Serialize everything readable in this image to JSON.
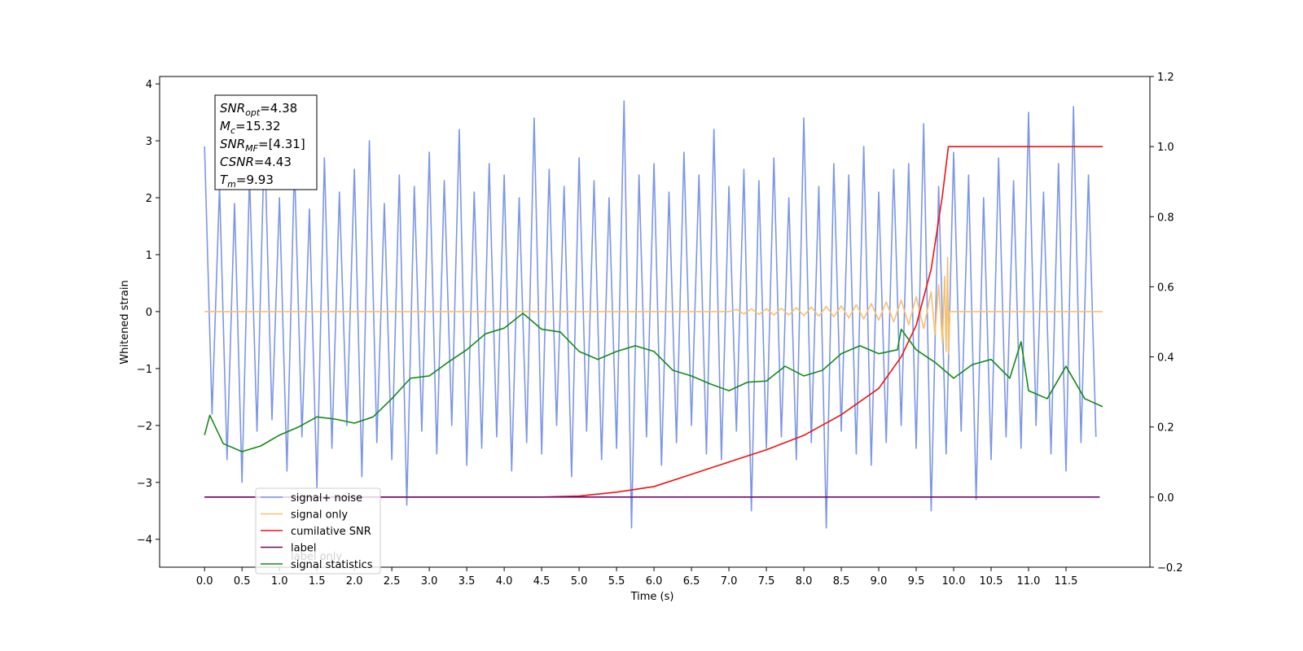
{
  "chart_data": {
    "type": "line",
    "xlabel": "Time (s)",
    "ylabel": "Whitened strain",
    "xlim": [
      -0.6,
      12.62
    ],
    "ylim": [
      -4.49,
      4.13
    ],
    "y2lim": [
      -0.2,
      1.2
    ],
    "xticks": [
      {
        "value": 0,
        "label": "0.0"
      },
      0.5,
      {
        "value": 1,
        "label": "1.0"
      },
      1.5,
      {
        "value": 2,
        "label": "2.0"
      },
      2.5,
      {
        "value": 3,
        "label": "3.0"
      },
      3.5,
      {
        "value": 4,
        "label": "4.0"
      },
      4.5,
      {
        "value": 5,
        "label": "5.0"
      },
      5.5,
      {
        "value": 6,
        "label": "6.0"
      },
      6.5,
      {
        "value": 7,
        "label": "7.0"
      },
      7.5,
      {
        "value": 8,
        "label": "8.0"
      },
      8.5,
      {
        "value": 9,
        "label": "9.0"
      },
      9.5,
      {
        "value": 10,
        "label": "10.0"
      },
      10.5,
      {
        "value": 11,
        "label": "11.0"
      },
      11.5
    ],
    "yticks": [
      {
        "value": -4,
        "label": "−4"
      },
      {
        "value": -3,
        "label": "−3"
      },
      {
        "value": -2,
        "label": "−2"
      },
      {
        "value": -1,
        "label": "−1"
      },
      0,
      1,
      2,
      3,
      4
    ],
    "y2ticks": [
      {
        "value": -0.2,
        "label": "−0.2"
      },
      {
        "value": 0,
        "label": "0.0"
      },
      0.2,
      0.4,
      0.6,
      0.8,
      {
        "value": 1,
        "label": "1.0"
      },
      1.2
    ],
    "legend": "lower left",
    "legend_overlay": [
      "label only"
    ],
    "annotation": [
      {
        "text": "SNR",
        "sub": "opt",
        "rest": "=4.38"
      },
      {
        "text": "M",
        "sub": "c",
        "rest": "=15.32"
      },
      {
        "text": "SNR",
        "sub": "MF",
        "rest": "=[4.31]"
      },
      {
        "text": "CSNR",
        "rest": "=4.43"
      },
      {
        "text": "T",
        "sub": "m",
        "rest": "=9.93"
      }
    ],
    "series": [
      {
        "name": "signal+ noise",
        "color": "#7b96e8",
        "axis": "y",
        "x": [
          0,
          0.1,
          0.2,
          0.3,
          0.4,
          0.5,
          0.6,
          0.7,
          0.8,
          0.9,
          1,
          1.1,
          1.2,
          1.3,
          1.4,
          1.5,
          1.6,
          1.7,
          1.8,
          1.9,
          2,
          2.1,
          2.2,
          2.3,
          2.4,
          2.5,
          2.6,
          2.7,
          2.8,
          2.9,
          3,
          3.1,
          3.2,
          3.3,
          3.4,
          3.5,
          3.6,
          3.7,
          3.8,
          3.9,
          4,
          4.1,
          4.2,
          4.3,
          4.4,
          4.5,
          4.6,
          4.7,
          4.8,
          4.9,
          5,
          5.1,
          5.2,
          5.3,
          5.4,
          5.5,
          5.6,
          5.7,
          5.8,
          5.9,
          6,
          6.1,
          6.2,
          6.3,
          6.4,
          6.5,
          6.6,
          6.7,
          6.8,
          6.9,
          7,
          7.1,
          7.2,
          7.3,
          7.4,
          7.5,
          7.6,
          7.7,
          7.8,
          7.9,
          8,
          8.1,
          8.2,
          8.3,
          8.4,
          8.5,
          8.6,
          8.7,
          8.8,
          8.9,
          9,
          9.1,
          9.2,
          9.3,
          9.4,
          9.5,
          9.6,
          9.7,
          9.8,
          9.9,
          10,
          10.1,
          10.2,
          10.3,
          10.4,
          10.5,
          10.6,
          10.7,
          10.8,
          10.9,
          11,
          11.1,
          11.2,
          11.3,
          11.4,
          11.5,
          11.6,
          11.7,
          11.8,
          11.9
        ],
        "values": [
          2.9,
          -1.8,
          2.2,
          -2.6,
          1.9,
          -3.0,
          2.4,
          -2.1,
          3.1,
          -1.9,
          2.0,
          -2.8,
          2.6,
          -2.2,
          1.8,
          -3.1,
          2.7,
          -2.4,
          2.1,
          -2.0,
          2.5,
          -2.9,
          3.0,
          -2.3,
          1.9,
          -2.6,
          2.4,
          -3.4,
          2.2,
          -2.1,
          2.8,
          -2.5,
          2.3,
          -2.0,
          3.2,
          -2.7,
          2.1,
          -2.4,
          2.6,
          -2.2,
          2.4,
          -2.8,
          2.0,
          -2.3,
          3.4,
          -2.5,
          2.5,
          -2.0,
          2.2,
          -2.9,
          2.7,
          -2.1,
          2.3,
          -2.6,
          2.0,
          -2.4,
          3.7,
          -3.8,
          2.4,
          -2.2,
          2.6,
          -2.7,
          2.1,
          -2.3,
          2.8,
          -2.0,
          2.4,
          -2.5,
          3.2,
          -2.6,
          2.2,
          -2.1,
          2.5,
          -3.5,
          2.3,
          -2.4,
          2.7,
          -2.2,
          2.0,
          -2.6,
          3.4,
          -2.3,
          2.2,
          -3.8,
          2.6,
          -2.1,
          2.4,
          -2.5,
          2.9,
          -2.7,
          2.1,
          -2.3,
          2.5,
          -2.0,
          2.6,
          -2.4,
          3.3,
          -3.5,
          2.2,
          -2.5,
          2.8,
          -2.1,
          2.4,
          -3.3,
          2.0,
          -2.6,
          2.7,
          -2.2,
          2.3,
          -2.4,
          3.5,
          -2.0,
          2.1,
          -2.5,
          2.6,
          -2.8,
          3.6,
          -2.3,
          2.4,
          -2.2
        ]
      },
      {
        "name": "signal only",
        "color": "#f7c070",
        "axis": "y",
        "x": [
          0,
          7.0,
          7.1,
          7.2,
          7.3,
          7.4,
          7.5,
          7.6,
          7.7,
          7.8,
          7.9,
          8.0,
          8.1,
          8.2,
          8.3,
          8.4,
          8.5,
          8.6,
          8.7,
          8.8,
          8.9,
          9.0,
          9.1,
          9.2,
          9.3,
          9.4,
          9.5,
          9.6,
          9.7,
          9.75,
          9.8,
          9.85,
          9.88,
          9.9,
          9.92,
          9.93,
          9.95,
          11.99
        ],
        "values": [
          0,
          0,
          0.04,
          -0.04,
          0.05,
          -0.05,
          0.05,
          -0.06,
          0.06,
          -0.06,
          0.07,
          -0.07,
          0.08,
          -0.08,
          0.09,
          -0.09,
          0.1,
          -0.11,
          0.12,
          -0.13,
          0.14,
          -0.15,
          0.17,
          -0.18,
          0.2,
          -0.23,
          0.26,
          -0.3,
          0.35,
          -0.4,
          0.47,
          -0.55,
          0.62,
          -0.7,
          0.95,
          -0.75,
          0,
          0
        ]
      },
      {
        "name": "cumilative SNR",
        "color": "#ee1111",
        "axis": "y2",
        "x": [
          0,
          4.5,
          5.0,
          5.5,
          6.0,
          6.5,
          7.0,
          7.5,
          8.0,
          8.5,
          9.0,
          9.3,
          9.5,
          9.7,
          9.85,
          9.93,
          11.99
        ],
        "values": [
          0,
          0,
          0.003,
          0.014,
          0.03,
          0.065,
          0.1,
          0.135,
          0.176,
          0.235,
          0.31,
          0.4,
          0.49,
          0.65,
          0.86,
          1.0,
          1.0
        ]
      },
      {
        "name": "label",
        "color": "#6a0a6a",
        "axis": "y2",
        "x": [
          0,
          11.95
        ],
        "values": [
          0,
          0
        ]
      },
      {
        "name": "signal statistics",
        "color": "#138a13",
        "axis": "y",
        "x": [
          0,
          0.07,
          0.25,
          0.5,
          0.75,
          1,
          1.25,
          1.5,
          1.75,
          2,
          2.25,
          2.5,
          2.75,
          3,
          3.25,
          3.5,
          3.75,
          4,
          4.25,
          4.5,
          4.75,
          5,
          5.25,
          5.5,
          5.75,
          6,
          6.25,
          6.5,
          6.75,
          7,
          7.25,
          7.5,
          7.75,
          8,
          8.25,
          8.5,
          8.75,
          9,
          9.25,
          9.3,
          9.5,
          9.75,
          10,
          10.25,
          10.5,
          10.75,
          10.9,
          11,
          11.25,
          11.5,
          11.75,
          11.99
        ],
        "values": [
          -2.17,
          -1.82,
          -2.32,
          -2.46,
          -2.36,
          -2.17,
          -2.03,
          -1.85,
          -1.89,
          -1.96,
          -1.85,
          -1.53,
          -1.17,
          -1.13,
          -0.89,
          -0.67,
          -0.39,
          -0.29,
          -0.03,
          -0.31,
          -0.36,
          -0.7,
          -0.84,
          -0.7,
          -0.6,
          -0.7,
          -1.03,
          -1.13,
          -1.27,
          -1.39,
          -1.24,
          -1.22,
          -0.96,
          -1.13,
          -1.03,
          -0.74,
          -0.6,
          -0.74,
          -0.67,
          -0.31,
          -0.67,
          -0.89,
          -1.17,
          -0.93,
          -0.84,
          -1.17,
          -0.53,
          -1.39,
          -1.53,
          -0.96,
          -1.53,
          -1.67
        ]
      }
    ]
  }
}
